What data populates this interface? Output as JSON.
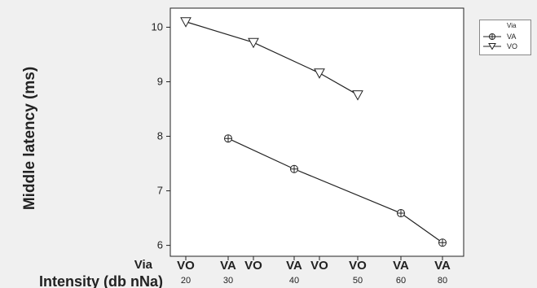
{
  "chart_data": {
    "type": "line",
    "title": "",
    "ylabel": "Middle latency (ms)",
    "xlabel": "Intensity (db nNa)",
    "via_label": "Via",
    "ylim": [
      5.8,
      10.35
    ],
    "y_ticks": [
      6,
      7,
      8,
      9,
      10
    ],
    "x_columns": [
      {
        "via": "VO",
        "intensity": "20"
      },
      {
        "via": "VA",
        "intensity": "30"
      },
      {
        "via": "VO",
        "intensity": ""
      },
      {
        "via": "VA",
        "intensity": "40"
      },
      {
        "via": "VO",
        "intensity": ""
      },
      {
        "via": "VO",
        "intensity": "50"
      },
      {
        "via": "VA",
        "intensity": "60"
      },
      {
        "via": "VA",
        "intensity": "80"
      }
    ],
    "legend": {
      "title": "Via",
      "entries": [
        "VA",
        "VO"
      ]
    },
    "series": [
      {
        "name": "VA",
        "marker": "circle-plus",
        "points": [
          {
            "x": "VA 30",
            "y": 7.96
          },
          {
            "x": "VA 40",
            "y": 7.4
          },
          {
            "x": "VA 60",
            "y": 6.59
          },
          {
            "x": "VA 80",
            "y": 6.05
          }
        ]
      },
      {
        "name": "VO",
        "marker": "triangle-down",
        "points": [
          {
            "x": "VO 20",
            "y": 10.1
          },
          {
            "x": "VO 30",
            "y": 9.72
          },
          {
            "x": "VO 40",
            "y": 9.16
          },
          {
            "x": "VO 50",
            "y": 8.76
          }
        ]
      }
    ],
    "colors": {
      "line": "#222222",
      "plot_bg": "#ffffff",
      "page_bg": "#f0f0f0"
    }
  }
}
